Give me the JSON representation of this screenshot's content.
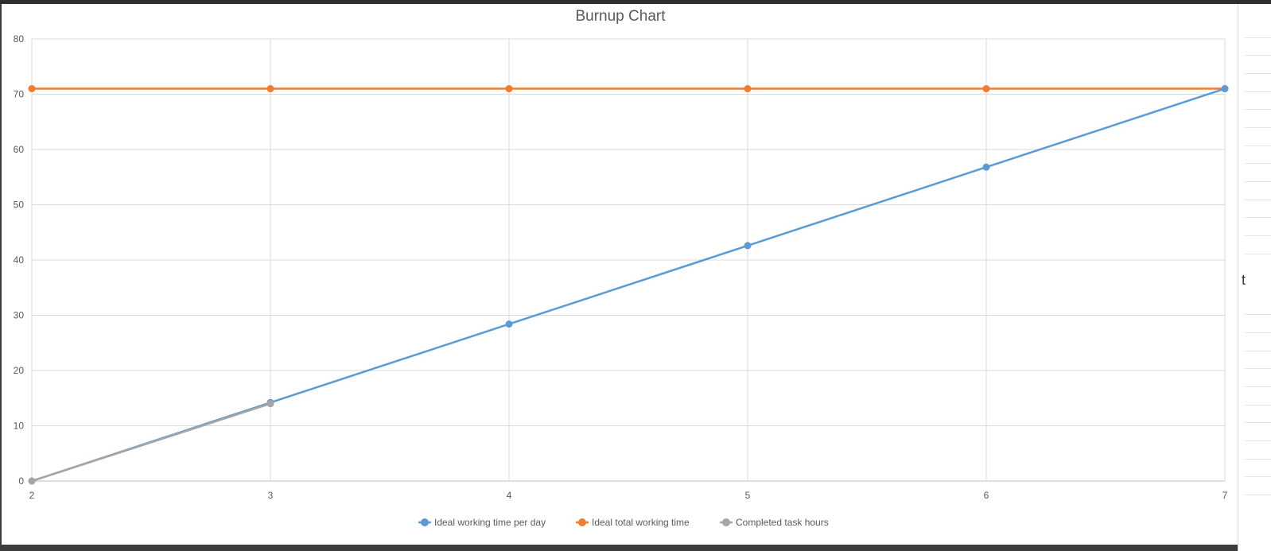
{
  "chart_data": {
    "type": "line",
    "title": "Burnup Chart",
    "xlabel": "",
    "ylabel": "",
    "x": [
      2,
      3,
      4,
      5,
      6,
      7
    ],
    "xlim": [
      2,
      7
    ],
    "ylim": [
      0,
      80
    ],
    "y_ticks": [
      0,
      10,
      20,
      30,
      40,
      50,
      60,
      70,
      80
    ],
    "x_ticks": [
      2,
      3,
      4,
      5,
      6,
      7
    ],
    "grid": true,
    "legend_position": "bottom",
    "series": [
      {
        "name": "Ideal working time per day",
        "color": "#5b9bd5",
        "x": [
          2,
          3,
          4,
          5,
          6,
          7
        ],
        "values": [
          0,
          14.2,
          28.4,
          42.6,
          56.8,
          71
        ]
      },
      {
        "name": "Ideal total working time",
        "color": "#ed7d31",
        "x": [
          2,
          3,
          4,
          5,
          6,
          7
        ],
        "values": [
          71,
          71,
          71,
          71,
          71,
          71
        ]
      },
      {
        "name": "Completed task hours",
        "color": "#a5a5a5",
        "x": [
          2,
          3
        ],
        "values": [
          0,
          14
        ]
      }
    ]
  },
  "gutter": {
    "partial_text": "t"
  }
}
